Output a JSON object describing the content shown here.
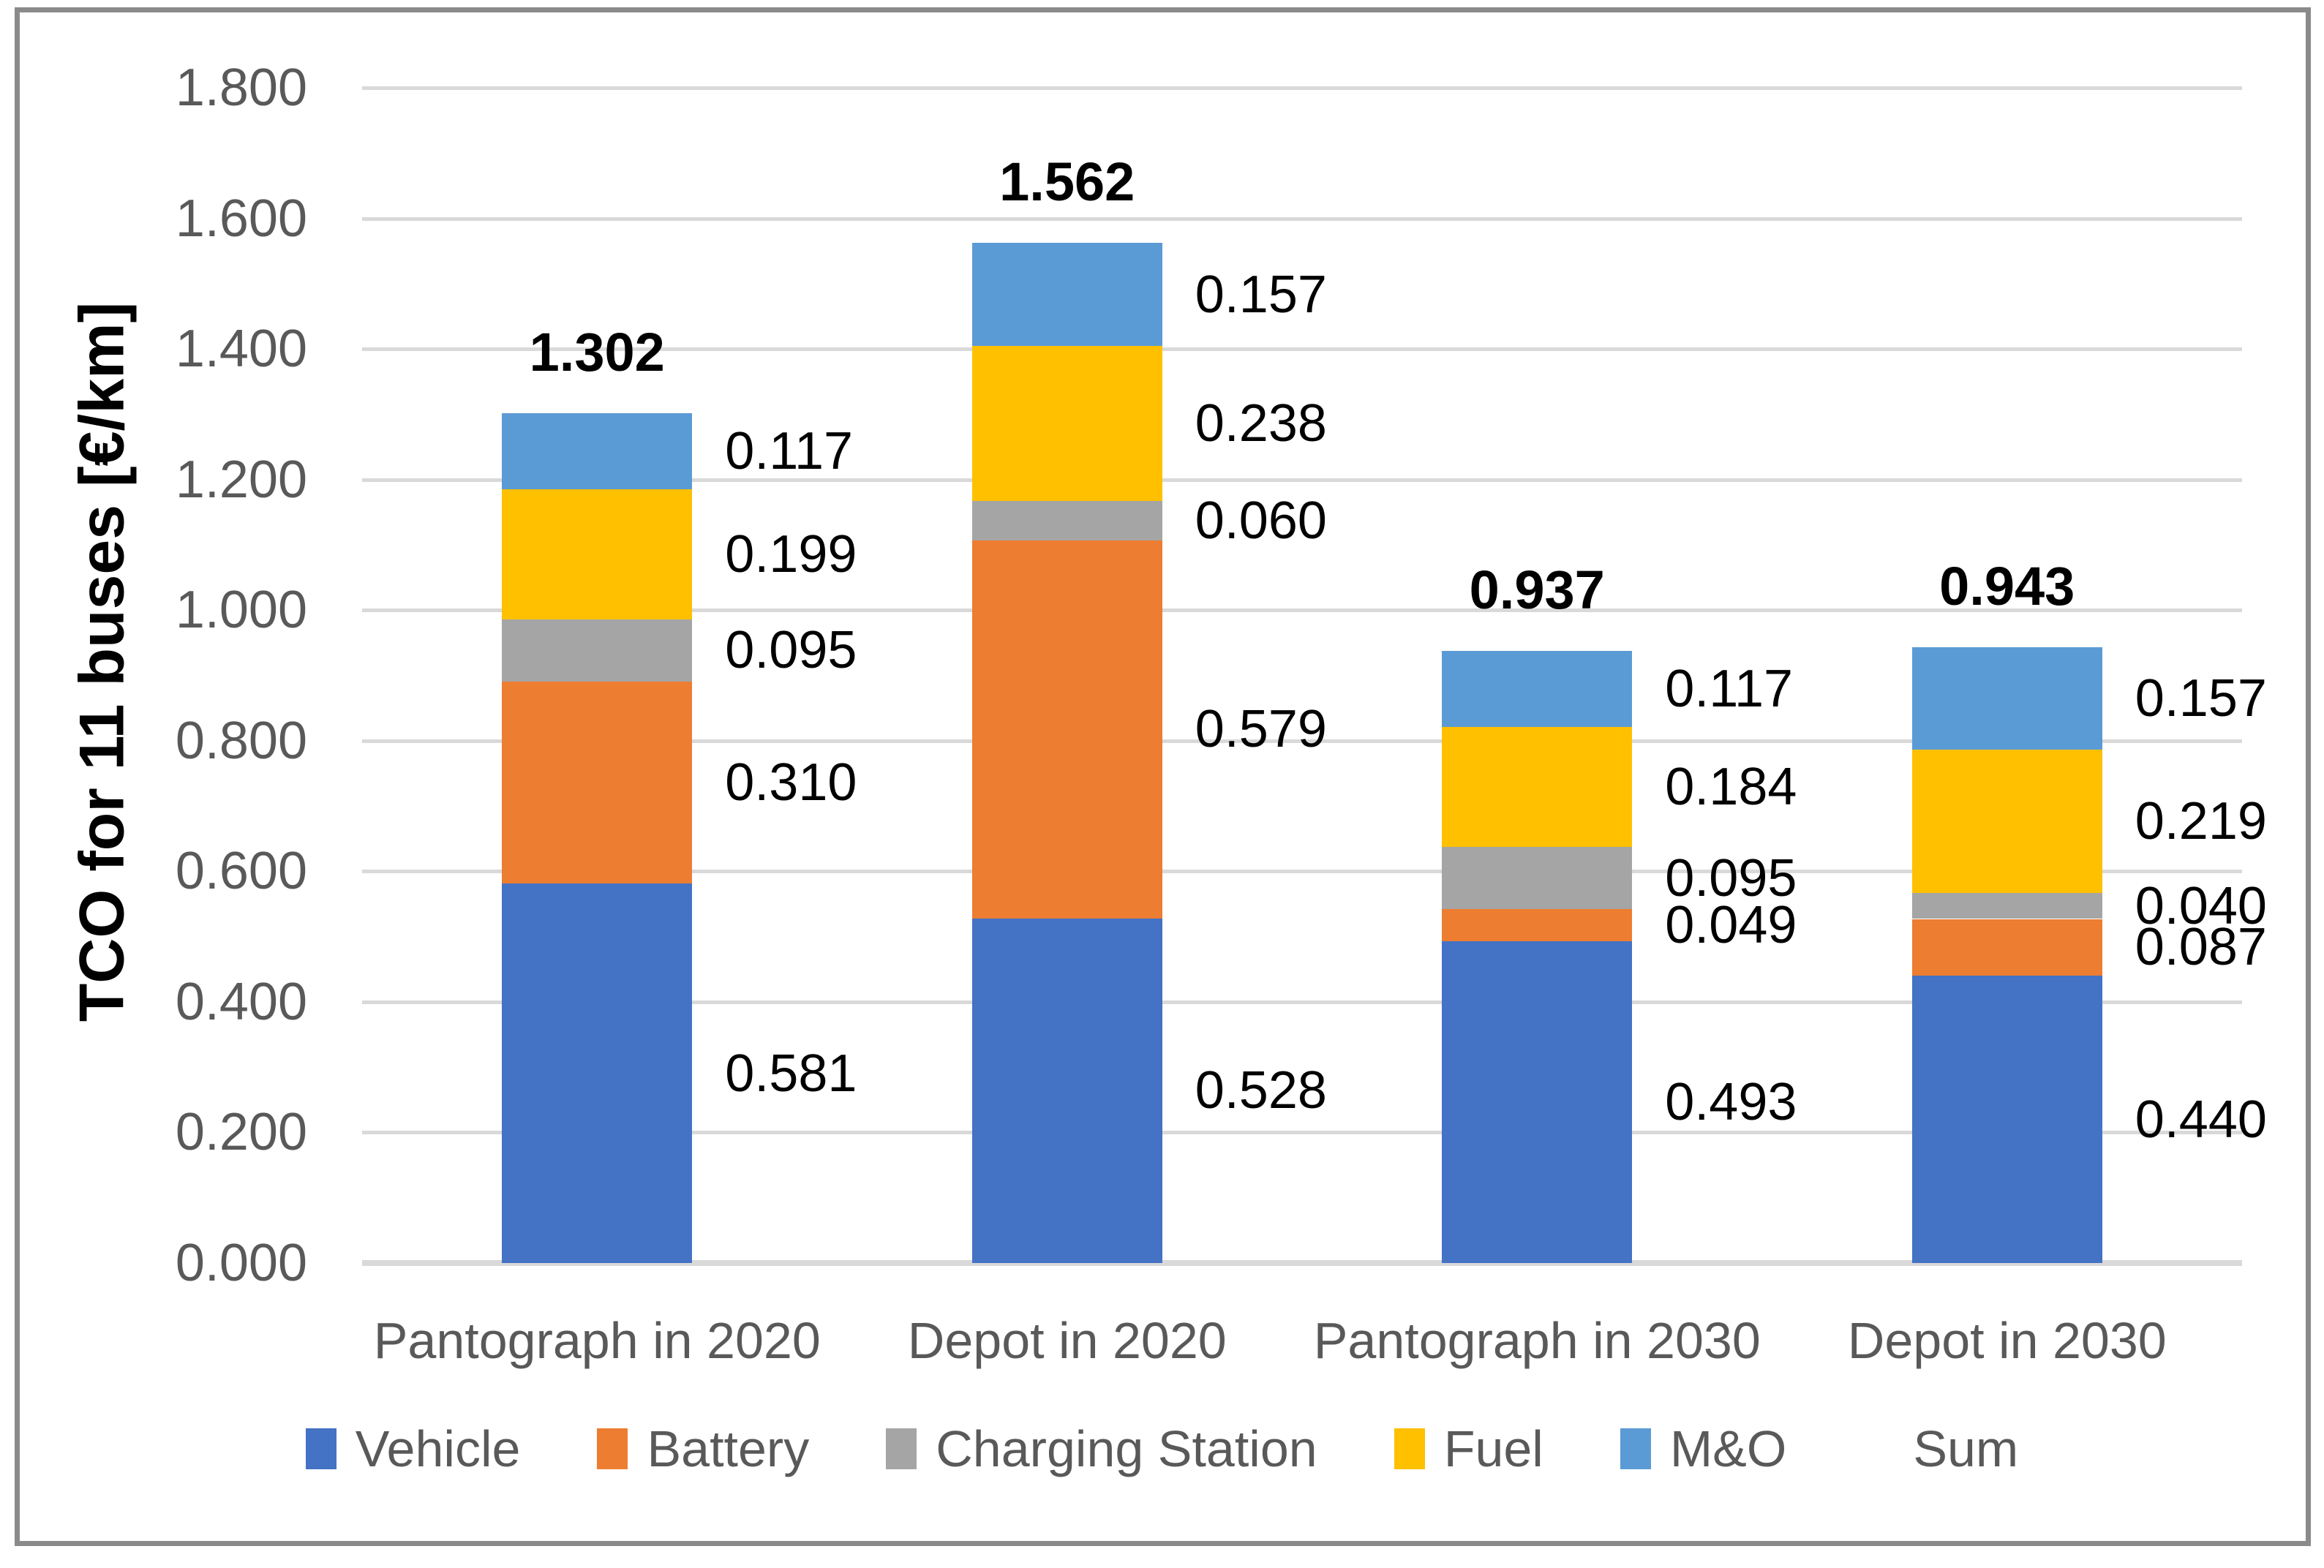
{
  "chart_data": {
    "type": "bar",
    "stacked": true,
    "title": "",
    "xlabel": "",
    "ylabel": "TCO for 11 buses [€/km]",
    "ylim": [
      0,
      1.8
    ],
    "ytick_step": 0.2,
    "ytick_labels": [
      "0.000",
      "0.200",
      "0.400",
      "0.600",
      "0.800",
      "1.000",
      "1.200",
      "1.400",
      "1.600",
      "1.800"
    ],
    "grid": true,
    "legend_position": "bottom",
    "categories": [
      "Pantograph in 2020",
      "Depot in 2020",
      "Pantograph in 2030",
      "Depot in 2030"
    ],
    "series": [
      {
        "name": "Vehicle",
        "color": "#4472C4",
        "values": [
          0.581,
          0.528,
          0.493,
          0.44
        ],
        "labels": [
          "0.581",
          "0.528",
          "0.493",
          "0.440"
        ]
      },
      {
        "name": "Battery",
        "color": "#ED7D31",
        "values": [
          0.31,
          0.579,
          0.049,
          0.087
        ],
        "labels": [
          "0.310",
          "0.579",
          "0.049",
          "0.087"
        ]
      },
      {
        "name": "Charging Station",
        "color": "#A5A5A5",
        "values": [
          0.095,
          0.06,
          0.095,
          0.04
        ],
        "labels": [
          "0.095",
          "0.060",
          "0.095",
          "0.040"
        ]
      },
      {
        "name": "Fuel",
        "color": "#FFC000",
        "values": [
          0.199,
          0.238,
          0.184,
          0.219
        ],
        "labels": [
          "0.199",
          "0.238",
          "0.184",
          "0.219"
        ]
      },
      {
        "name": "M&O",
        "color": "#5B9BD5",
        "values": [
          0.117,
          0.157,
          0.117,
          0.157
        ],
        "labels": [
          "0.117",
          "0.157",
          "0.117",
          "0.157"
        ]
      }
    ],
    "sum_series": {
      "name": "Sum",
      "labels": [
        "1.302",
        "1.562",
        "0.937",
        "0.943"
      ]
    },
    "legend": [
      "Vehicle",
      "Battery",
      "Charging Station",
      "Fuel",
      "M&O",
      "Sum"
    ],
    "colors": {
      "gridline": "#D9D9D9",
      "axis_line": "#D9D9D9",
      "axis_text": "#595959",
      "data_label_text": "#000000",
      "frame_border": "#8A8A8A"
    }
  }
}
